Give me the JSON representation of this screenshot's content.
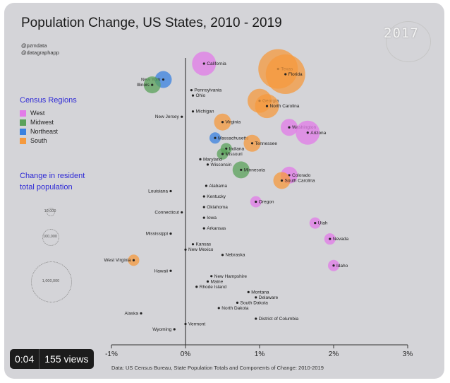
{
  "title": "Population Change, US States, 2010 - 2019",
  "handles": [
    "@pzmdata",
    "@datagraphapp"
  ],
  "year": "2017",
  "legend": {
    "title": "Census Regions",
    "items": [
      {
        "label": "West",
        "color": "#e27be8"
      },
      {
        "label": "Midwest",
        "color": "#5aa25a"
      },
      {
        "label": "Northeast",
        "color": "#3a82e0"
      },
      {
        "label": "South",
        "color": "#f59a3e"
      }
    ]
  },
  "size_legend": {
    "title_line1": "Change in resident",
    "title_line2": "total population",
    "labels": [
      "10,000",
      "100,000",
      "1,000,000"
    ]
  },
  "source": "Data: US Census Bureau, State Population Totals and Components of Change: 2010-2019",
  "video": {
    "time": "0:04",
    "views": "155 views"
  },
  "chart_data": {
    "type": "scatter",
    "title": "Population Change, US States, 2010 - 2019",
    "xlabel": "",
    "ylabel": "",
    "x_unit": "percent change",
    "xlim": [
      -1,
      3
    ],
    "x_ticks": [
      "-1%",
      "0%",
      "1%",
      "2%",
      "3%"
    ],
    "y_axis": "states ordered (no numeric scale)",
    "points": [
      {
        "state": "California",
        "x": 0.25,
        "region": "West",
        "bubble": "large"
      },
      {
        "state": "Texas",
        "x": 1.25,
        "region": "South",
        "bubble": "largest"
      },
      {
        "state": "Florida",
        "x": 1.35,
        "region": "South",
        "bubble": "largest"
      },
      {
        "state": "New York",
        "x": -0.3,
        "region": "Northeast",
        "bubble": "medium"
      },
      {
        "state": "Illinois",
        "x": -0.45,
        "region": "Midwest",
        "bubble": "medium"
      },
      {
        "state": "Pennsylvania",
        "x": 0.08,
        "region": "Northeast",
        "bubble": "none"
      },
      {
        "state": "Ohio",
        "x": 0.1,
        "region": "Midwest",
        "bubble": "none"
      },
      {
        "state": "Georgia",
        "x": 1.0,
        "region": "South",
        "bubble": "large"
      },
      {
        "state": "North Carolina",
        "x": 1.1,
        "region": "South",
        "bubble": "large"
      },
      {
        "state": "Michigan",
        "x": 0.1,
        "region": "Midwest",
        "bubble": "none"
      },
      {
        "state": "New Jersey",
        "x": -0.05,
        "region": "Northeast",
        "bubble": "none"
      },
      {
        "state": "Virginia",
        "x": 0.5,
        "region": "South",
        "bubble": "medium"
      },
      {
        "state": "Washington",
        "x": 1.4,
        "region": "West",
        "bubble": "medium"
      },
      {
        "state": "Arizona",
        "x": 1.65,
        "region": "West",
        "bubble": "large"
      },
      {
        "state": "Massachusetts",
        "x": 0.4,
        "region": "Northeast",
        "bubble": "small"
      },
      {
        "state": "Tennessee",
        "x": 0.9,
        "region": "South",
        "bubble": "medium"
      },
      {
        "state": "Indiana",
        "x": 0.55,
        "region": "Midwest",
        "bubble": "small"
      },
      {
        "state": "Missouri",
        "x": 0.5,
        "region": "Midwest",
        "bubble": "small"
      },
      {
        "state": "Maryland",
        "x": 0.2,
        "region": "South",
        "bubble": "none"
      },
      {
        "state": "Wisconsin",
        "x": 0.3,
        "region": "Midwest",
        "bubble": "none"
      },
      {
        "state": "Minnesota",
        "x": 0.75,
        "region": "Midwest",
        "bubble": "medium"
      },
      {
        "state": "Colorado",
        "x": 1.4,
        "region": "West",
        "bubble": "medium"
      },
      {
        "state": "South Carolina",
        "x": 1.3,
        "region": "South",
        "bubble": "medium"
      },
      {
        "state": "Alabama",
        "x": 0.28,
        "region": "South",
        "bubble": "none"
      },
      {
        "state": "Louisiana",
        "x": -0.2,
        "region": "South",
        "bubble": "none"
      },
      {
        "state": "Kentucky",
        "x": 0.25,
        "region": "South",
        "bubble": "none"
      },
      {
        "state": "Oregon",
        "x": 0.95,
        "region": "West",
        "bubble": "small"
      },
      {
        "state": "Oklahoma",
        "x": 0.25,
        "region": "South",
        "bubble": "none"
      },
      {
        "state": "Connecticut",
        "x": -0.05,
        "region": "Northeast",
        "bubble": "none"
      },
      {
        "state": "Iowa",
        "x": 0.25,
        "region": "Midwest",
        "bubble": "none"
      },
      {
        "state": "Utah",
        "x": 1.75,
        "region": "West",
        "bubble": "small"
      },
      {
        "state": "Arkansas",
        "x": 0.25,
        "region": "South",
        "bubble": "none"
      },
      {
        "state": "Mississippi",
        "x": -0.2,
        "region": "South",
        "bubble": "none"
      },
      {
        "state": "Nevada",
        "x": 1.95,
        "region": "West",
        "bubble": "small"
      },
      {
        "state": "Kansas",
        "x": 0.1,
        "region": "Midwest",
        "bubble": "none"
      },
      {
        "state": "New Mexico",
        "x": 0.0,
        "region": "West",
        "bubble": "none"
      },
      {
        "state": "Nebraska",
        "x": 0.5,
        "region": "Midwest",
        "bubble": "none"
      },
      {
        "state": "West Virginia",
        "x": -0.7,
        "region": "South",
        "bubble": "small"
      },
      {
        "state": "Idaho",
        "x": 2.0,
        "region": "West",
        "bubble": "small"
      },
      {
        "state": "Hawaii",
        "x": -0.2,
        "region": "West",
        "bubble": "none"
      },
      {
        "state": "New Hampshire",
        "x": 0.35,
        "region": "Northeast",
        "bubble": "none"
      },
      {
        "state": "Maine",
        "x": 0.3,
        "region": "Northeast",
        "bubble": "none"
      },
      {
        "state": "Rhode Island",
        "x": 0.15,
        "region": "Northeast",
        "bubble": "none"
      },
      {
        "state": "Montana",
        "x": 0.85,
        "region": "West",
        "bubble": "none"
      },
      {
        "state": "Delaware",
        "x": 0.95,
        "region": "South",
        "bubble": "none"
      },
      {
        "state": "South Dakota",
        "x": 0.7,
        "region": "Midwest",
        "bubble": "none"
      },
      {
        "state": "North Dakota",
        "x": 0.45,
        "region": "Midwest",
        "bubble": "none"
      },
      {
        "state": "Alaska",
        "x": -0.6,
        "region": "West",
        "bubble": "none"
      },
      {
        "state": "District of Columbia",
        "x": 0.95,
        "region": "South",
        "bubble": "none"
      },
      {
        "state": "Vermont",
        "x": 0.0,
        "region": "Northeast",
        "bubble": "none"
      },
      {
        "state": "Wyoming",
        "x": -0.15,
        "region": "West",
        "bubble": "none"
      }
    ]
  }
}
